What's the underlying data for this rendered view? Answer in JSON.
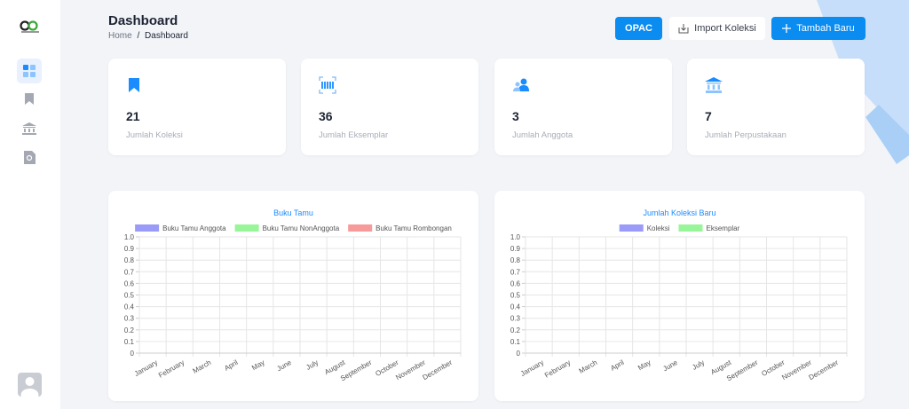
{
  "header": {
    "title": "Dashboard",
    "breadcrumb": [
      "Home",
      "Dashboard"
    ],
    "breadcrumb_separator": "/"
  },
  "buttons": [
    "OPAC",
    "Import Koleksi",
    "Tambah Baru"
  ],
  "stats": [
    {
      "value": 21,
      "label": "Jumlah Koleksi"
    },
    {
      "value": 36,
      "label": "Jumlah Eksemplar"
    },
    {
      "value": 3,
      "label": "Jumlah Anggota"
    },
    {
      "value": 7,
      "label": "Jumlah Perpustakaan"
    }
  ],
  "charts": [
    {
      "type": "bar",
      "title": "Buku Tamu",
      "categories": [
        "January",
        "February",
        "March",
        "April",
        "May",
        "June",
        "July",
        "August",
        "September",
        "October",
        "November",
        "December"
      ],
      "series": [
        {
          "name": "Buku Tamu Anggota",
          "color": "#9a9af8"
        },
        {
          "name": "Buku Tamu NonAnggota",
          "color": "#99f599"
        },
        {
          "name": "Buku Tamu Rombongan",
          "color": "#f79a9a"
        }
      ],
      "ylim": [
        0,
        1
      ],
      "yticks": [
        0,
        0.1,
        0.2,
        0.3,
        0.4,
        0.5,
        0.6,
        0.7,
        0.8,
        0.9,
        {
          "value": 1,
          "label": "1.0"
        }
      ],
      "grid": true
    },
    {
      "type": "bar",
      "title": "Jumlah Koleksi Baru",
      "categories": [
        "January",
        "February",
        "March",
        "April",
        "May",
        "June",
        "July",
        "August",
        "September",
        "October",
        "November",
        "December"
      ],
      "series": [
        {
          "name": "Koleksi",
          "color": "#9a9af8"
        },
        {
          "name": "Eksemplar",
          "color": "#99f599"
        }
      ],
      "ylim": [
        0,
        1
      ],
      "yticks": [
        0,
        0.1,
        0.2,
        0.3,
        0.4,
        0.5,
        0.6,
        0.7,
        0.8,
        0.9,
        {
          "value": 1,
          "label": "1.0"
        }
      ],
      "grid": true
    }
  ]
}
